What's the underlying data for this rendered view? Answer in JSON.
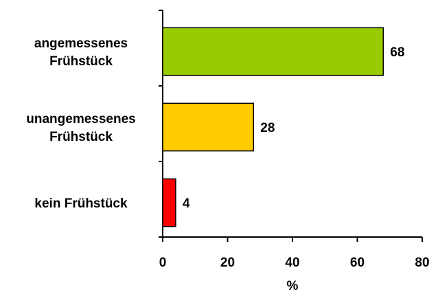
{
  "chart_data": {
    "type": "bar",
    "orientation": "horizontal",
    "categories": [
      [
        "angemessenes",
        "Frühstück"
      ],
      [
        "unangemessenes",
        "Frühstück"
      ],
      [
        "kein Frühstück"
      ]
    ],
    "values": [
      68,
      28,
      4
    ],
    "value_labels": [
      "68",
      "28",
      "4"
    ],
    "colors": [
      "#99cc00",
      "#ffcc00",
      "#ff0000"
    ],
    "xlabel": "%",
    "xlim": [
      0,
      80
    ],
    "xticks": [
      0,
      20,
      40,
      60,
      80
    ],
    "xtick_labels": [
      "0",
      "20",
      "40",
      "60",
      "80"
    ],
    "grid": false,
    "legend": "none"
  }
}
